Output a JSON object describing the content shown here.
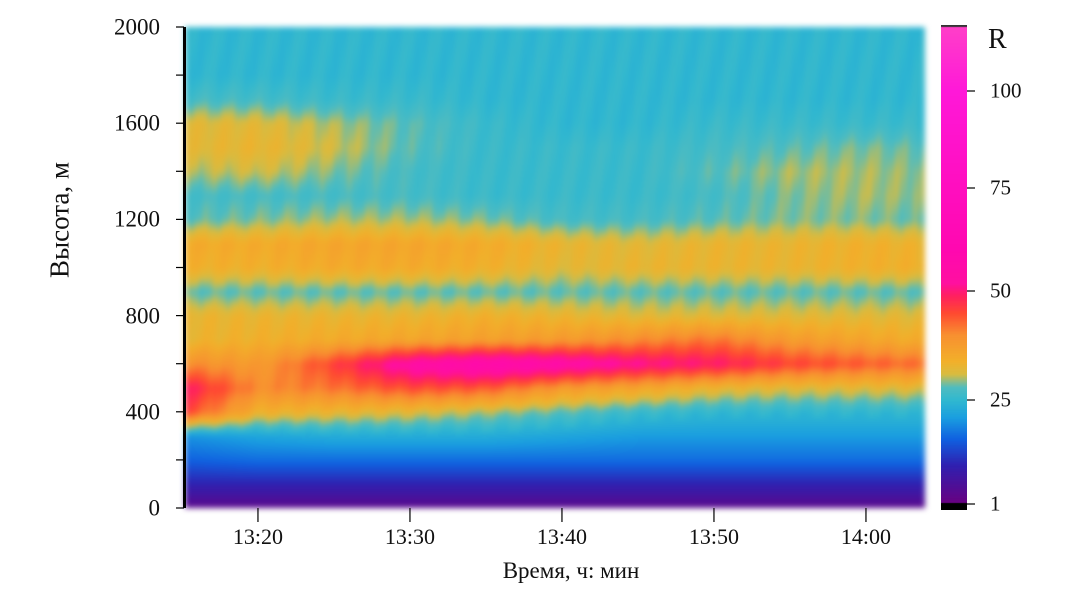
{
  "chart_data": {
    "type": "heatmap",
    "title": "",
    "xlabel": "Время, ч: мин",
    "ylabel": "Высота, м",
    "x_tick_labels": [
      "13:20",
      "13:30",
      "13:40",
      "13:50",
      "14:00"
    ],
    "y_tick_labels": [
      "0",
      "400",
      "800",
      "1200",
      "1600",
      "2000"
    ],
    "xlim": [
      "13:15",
      "14:05"
    ],
    "ylim": [
      0,
      2000
    ],
    "colorbar": {
      "label": "R",
      "ticks": [
        "1",
        "25",
        "50",
        "75",
        "100"
      ]
    },
    "x": [
      "13:15",
      "13:20",
      "13:25",
      "13:30",
      "13:35",
      "13:40",
      "13:45",
      "13:50",
      "13:55",
      "14:00",
      "14:05"
    ],
    "y": [
      0,
      100,
      200,
      300,
      400,
      500,
      600,
      700,
      800,
      900,
      1000,
      1100,
      1200,
      1300,
      1400,
      1500,
      1600,
      1700,
      1800,
      1900,
      2000
    ],
    "z": [
      [
        3,
        10,
        16,
        20,
        46,
        50,
        40,
        33,
        33,
        28,
        34,
        35,
        28,
        27,
        30,
        32,
        32,
        27,
        25,
        25,
        25
      ],
      [
        3,
        10,
        17,
        22,
        34,
        40,
        38,
        34,
        33,
        28,
        34,
        35,
        29,
        27,
        31,
        33,
        32,
        27,
        25,
        25,
        25
      ],
      [
        3,
        10,
        17,
        23,
        33,
        42,
        46,
        35,
        33,
        28,
        35,
        36,
        30,
        27,
        29,
        31,
        30,
        26,
        25,
        25,
        25
      ],
      [
        3,
        10,
        17,
        23,
        32,
        45,
        55,
        36,
        33,
        28,
        35,
        36,
        30,
        27,
        27,
        28,
        28,
        26,
        25,
        25,
        25
      ],
      [
        3,
        10,
        17,
        23,
        30,
        44,
        58,
        37,
        34,
        28,
        34,
        35,
        29,
        26,
        26,
        26,
        26,
        25,
        25,
        25,
        25
      ],
      [
        3,
        10,
        17,
        22,
        28,
        38,
        56,
        38,
        33,
        28,
        32,
        33,
        27,
        26,
        26,
        26,
        25,
        25,
        25,
        25,
        25
      ],
      [
        3,
        10,
        17,
        21,
        26,
        36,
        52,
        40,
        32,
        28,
        33,
        32,
        27,
        26,
        26,
        26,
        25,
        25,
        25,
        25,
        25
      ],
      [
        3,
        10,
        17,
        21,
        25,
        33,
        50,
        42,
        32,
        28,
        33,
        33,
        28,
        27,
        28,
        27,
        26,
        25,
        25,
        25,
        25
      ],
      [
        3,
        10,
        17,
        21,
        25,
        32,
        46,
        38,
        32,
        28,
        33,
        33,
        29,
        29,
        30,
        28,
        26,
        25,
        25,
        25,
        25
      ],
      [
        3,
        10,
        17,
        21,
        25,
        32,
        44,
        36,
        32,
        28,
        34,
        34,
        29,
        30,
        30,
        29,
        26,
        25,
        25,
        25,
        25
      ],
      [
        3,
        10,
        17,
        21,
        25,
        32,
        42,
        34,
        32,
        28,
        34,
        33,
        28,
        29,
        29,
        28,
        26,
        25,
        25,
        25,
        25
      ]
    ],
    "colormap": {
      "values": [
        0,
        1,
        10,
        16,
        21,
        25,
        28,
        31,
        34,
        40,
        45,
        49,
        52,
        60,
        100,
        115
      ],
      "colors": [
        "#000000",
        "#6a0080",
        "#3020b0",
        "#1060e0",
        "#1a9ee0",
        "#30b8d0",
        "#50bcc0",
        "#d8bc40",
        "#f2b02a",
        "#f89030",
        "#ff4a30",
        "#ff2060",
        "#ff10a0",
        "#ff08b0",
        "#ff18d8",
        "#ff40c8"
      ]
    },
    "grid": false,
    "legend": "colorbar-right"
  }
}
